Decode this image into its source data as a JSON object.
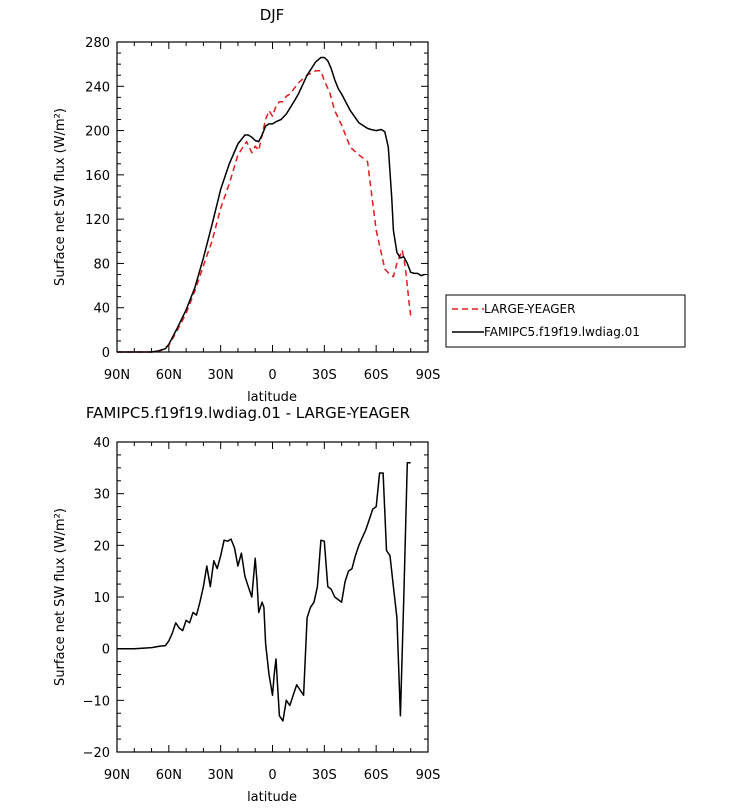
{
  "chart_data": [
    {
      "type": "line",
      "title": "DJF",
      "xlabel": "latitude",
      "ylabel": "Surface net SW flux (W/m²)",
      "xlim": [
        90,
        -90
      ],
      "ylim": [
        0,
        280
      ],
      "xticks": [
        90,
        60,
        30,
        0,
        -30,
        -60,
        -90
      ],
      "xtick_labels": [
        "90N",
        "60N",
        "30N",
        "0",
        "30S",
        "60S",
        "90S"
      ],
      "yticks": [
        0,
        40,
        80,
        120,
        160,
        200,
        240,
        280
      ],
      "ytick_labels": [
        "0",
        "40",
        "80",
        "120",
        "160",
        "200",
        "240",
        "280"
      ],
      "grid": false,
      "legend_position": "right",
      "series": [
        {
          "name": "LARGE-YEAGER",
          "color": "#e41a1c",
          "dash": "dashed",
          "x": [
            90,
            80,
            70,
            65,
            60,
            55,
            50,
            45,
            40,
            35,
            30,
            25,
            20,
            15,
            12,
            10,
            8,
            6,
            4,
            2,
            0,
            -2,
            -4,
            -6,
            -8,
            -10,
            -15,
            -20,
            -25,
            -28,
            -30,
            -33,
            -36,
            -40,
            -45,
            -50,
            -55,
            -60,
            -65,
            -68,
            -70,
            -72,
            -74,
            -75,
            -76,
            -77,
            -78,
            -79,
            -80
          ],
          "y": [
            0,
            0,
            0,
            1,
            6,
            20,
            35,
            55,
            78,
            100,
            130,
            152,
            178,
            190,
            180,
            186,
            182,
            196,
            210,
            218,
            213,
            222,
            226,
            226,
            231,
            233,
            243,
            250,
            254,
            254,
            245,
            235,
            218,
            205,
            185,
            178,
            172,
            110,
            75,
            70,
            68,
            80,
            88,
            92,
            85,
            75,
            60,
            45,
            33
          ]
        },
        {
          "name": "FAMIPC5.f19f19.lwdiag.01",
          "color": "#000000",
          "dash": "solid",
          "x": [
            90,
            80,
            70,
            66,
            62,
            60,
            55,
            50,
            45,
            40,
            35,
            30,
            25,
            20,
            16,
            14,
            12,
            10,
            8,
            6,
            4,
            2,
            0,
            -2,
            -5,
            -8,
            -10,
            -12,
            -15,
            -20,
            -25,
            -28,
            -30,
            -32,
            -34,
            -36,
            -38,
            -40,
            -45,
            -50,
            -55,
            -57,
            -60,
            -63,
            -65,
            -67,
            -69,
            -70,
            -72,
            -74,
            -76,
            -78,
            -80,
            -82,
            -84,
            -86,
            -88
          ],
          "y": [
            0,
            0,
            0,
            1,
            3,
            7,
            22,
            38,
            58,
            85,
            115,
            147,
            170,
            188,
            196,
            196,
            194,
            191,
            190,
            196,
            204,
            206,
            206,
            208,
            210,
            215,
            220,
            225,
            233,
            250,
            262,
            266,
            266,
            263,
            256,
            246,
            238,
            233,
            218,
            207,
            202,
            201,
            200,
            201,
            199,
            185,
            140,
            110,
            90,
            85,
            86,
            80,
            72,
            71,
            71,
            69,
            70
          ]
        }
      ]
    },
    {
      "type": "line",
      "title": "FAMIPC5.f19f19.lwdiag.01 - LARGE-YEAGER",
      "xlabel": "latitude",
      "ylabel": "Surface net SW flux (W/m²)",
      "xlim": [
        90,
        -90
      ],
      "ylim": [
        -20,
        40
      ],
      "xticks": [
        90,
        60,
        30,
        0,
        -30,
        -60,
        -90
      ],
      "xtick_labels": [
        "90N",
        "60N",
        "30N",
        "0",
        "30S",
        "60S",
        "90S"
      ],
      "yticks": [
        -20,
        -10,
        0,
        10,
        20,
        30,
        40
      ],
      "ytick_labels": [
        "−20",
        "−10",
        "0",
        "10",
        "20",
        "30",
        "40"
      ],
      "grid": false,
      "series": [
        {
          "color": "#000000",
          "dash": "solid",
          "x": [
            90,
            80,
            70,
            65,
            62,
            60,
            58,
            56,
            54,
            52,
            50,
            48,
            46,
            44,
            42,
            40,
            38,
            36,
            34,
            32,
            30,
            28,
            26,
            24,
            22,
            20,
            18,
            16,
            14,
            12,
            10,
            9,
            8,
            6,
            5,
            4,
            2,
            0,
            -1,
            -2,
            -4,
            -6,
            -8,
            -10,
            -12,
            -14,
            -16,
            -18,
            -20,
            -22,
            -24,
            -26,
            -28,
            -30,
            -32,
            -34,
            -36,
            -38,
            -40,
            -42,
            -44,
            -46,
            -48,
            -50,
            -52,
            -54,
            -56,
            -58,
            -60,
            -62,
            -64,
            -66,
            -68,
            -70,
            -72,
            -74,
            -76,
            -78,
            -80
          ],
          "y": [
            0,
            0,
            0.2,
            0.5,
            0.6,
            1.5,
            3,
            5,
            4,
            3.5,
            5.5,
            5,
            7,
            6.5,
            9,
            12,
            16,
            12,
            17,
            15.5,
            18,
            21,
            20.8,
            21.2,
            19.5,
            16,
            18.5,
            14,
            12,
            10,
            17.5,
            13,
            7,
            9,
            8,
            1,
            -5,
            -9,
            -5,
            -2,
            -13,
            -14,
            -10,
            -11,
            -9,
            -7,
            -8,
            -9,
            6,
            8,
            9,
            12,
            21,
            20.8,
            12,
            11.5,
            10,
            9.5,
            9,
            13,
            15,
            15.5,
            18,
            20,
            21.5,
            23,
            25,
            27,
            27.5,
            34,
            34,
            19,
            18,
            12,
            6,
            -13,
            10,
            36,
            36
          ]
        }
      ]
    }
  ],
  "legend": [
    {
      "label": "LARGE-YEAGER"
    },
    {
      "label": "FAMIPC5.f19f19.lwdiag.01"
    }
  ]
}
